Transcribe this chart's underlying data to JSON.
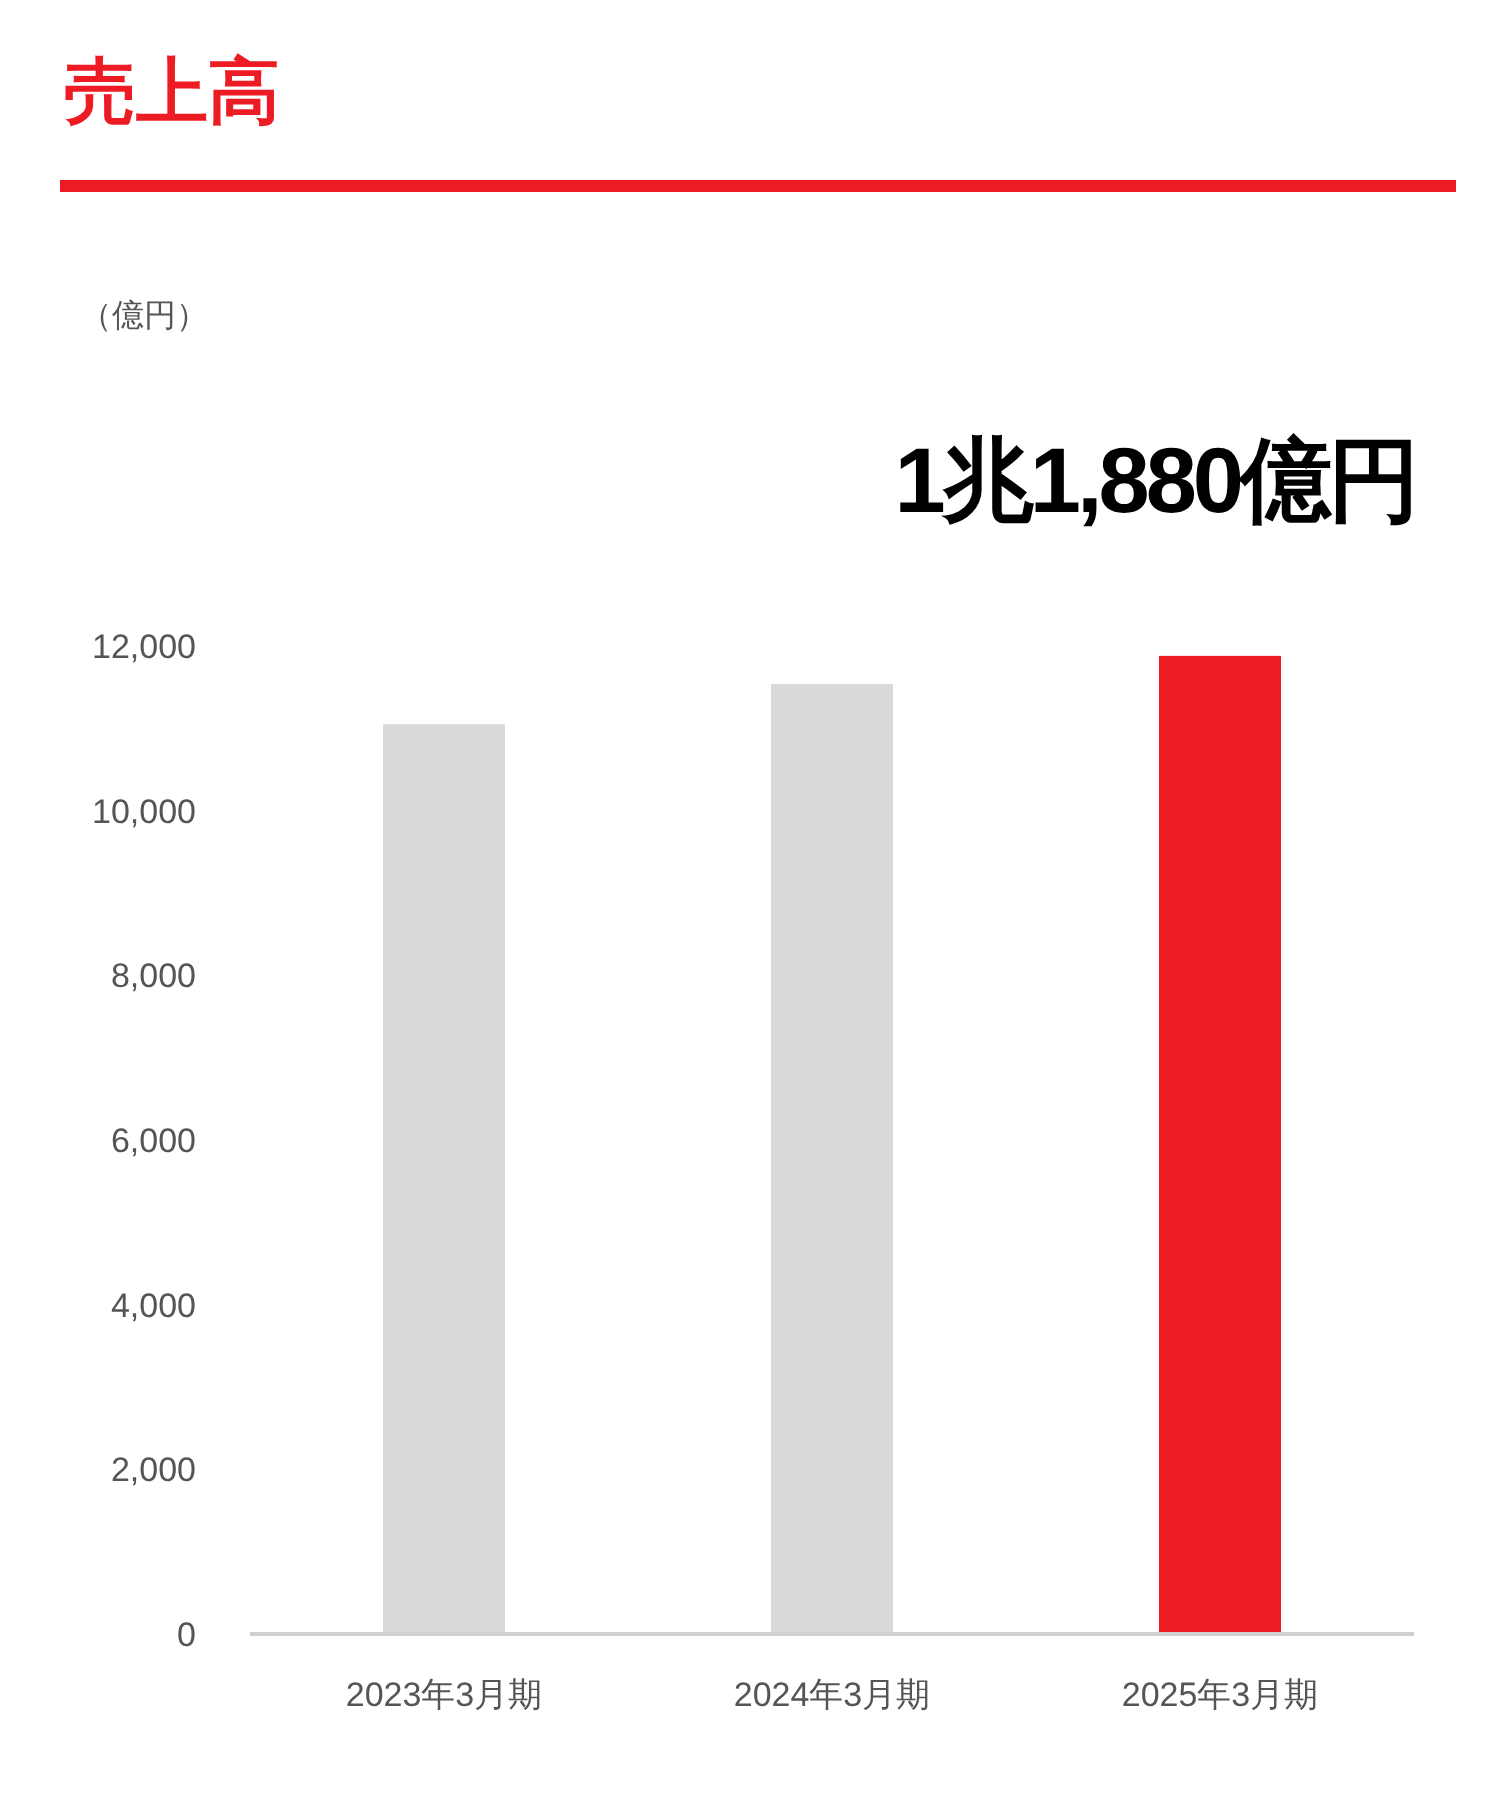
{
  "chart_data": {
    "type": "bar",
    "title": "売上高",
    "categories": [
      "2023年3月期",
      "2024年3月期",
      "2025年3月期"
    ],
    "values": [
      11050,
      11540,
      11880
    ],
    "colors": [
      "#d9d9d9",
      "#d9d9d9",
      "#ed1c24"
    ],
    "ylim": [
      0,
      12000
    ],
    "yticks": [
      {
        "value": 0,
        "label": "0"
      },
      {
        "value": 2000,
        "label": "2,000"
      },
      {
        "value": 4000,
        "label": "4,000"
      },
      {
        "value": 6000,
        "label": "6,000"
      },
      {
        "value": 8000,
        "label": "8,000"
      },
      {
        "value": 10000,
        "label": "10,000"
      },
      {
        "value": 12000,
        "label": "12,000"
      }
    ],
    "annotations": [
      "（億円）",
      "1兆1,880億円"
    ]
  }
}
